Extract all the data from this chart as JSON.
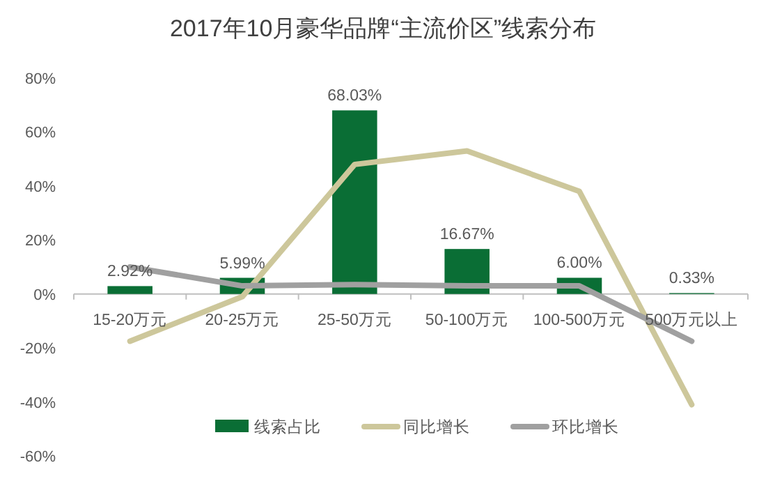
{
  "chart_data": {
    "type": "bar",
    "title": "2017年10月豪华品牌“主流价区”线索分布",
    "categories": [
      "15-20万元",
      "20-25万元",
      "25-50万元",
      "50-100万元",
      "100-500万元",
      "500万元以上"
    ],
    "series": [
      {
        "name": "线索占比",
        "color": "#0a6e35",
        "values": [
          2.92,
          5.99,
          68.03,
          16.67,
          6.0,
          0.33
        ],
        "value_labels": [
          "2.92%",
          "5.99%",
          "68.03%",
          "16.67%",
          "6.00%",
          "0.33%"
        ]
      },
      {
        "name": "同比增长",
        "type": "line",
        "color": "#cdc79b",
        "values": [
          -17.5,
          -1,
          48,
          53,
          38,
          -41
        ]
      },
      {
        "name": "环比增长",
        "type": "line",
        "color": "#a0a0a0",
        "values": [
          10,
          3,
          3.5,
          3,
          3,
          -17.5
        ]
      }
    ],
    "ylim": [
      -60,
      80
    ],
    "yticks": [
      {
        "value": -60,
        "label": "-60%"
      },
      {
        "value": -40,
        "label": "-40%"
      },
      {
        "value": -20,
        "label": "-20%"
      },
      {
        "value": 0,
        "label": "0%"
      },
      {
        "value": 20,
        "label": "20%"
      },
      {
        "value": 40,
        "label": "40%"
      },
      {
        "value": 60,
        "label": "60%"
      },
      {
        "value": 80,
        "label": "80%"
      }
    ],
    "grid": false,
    "legend": "bottom"
  }
}
